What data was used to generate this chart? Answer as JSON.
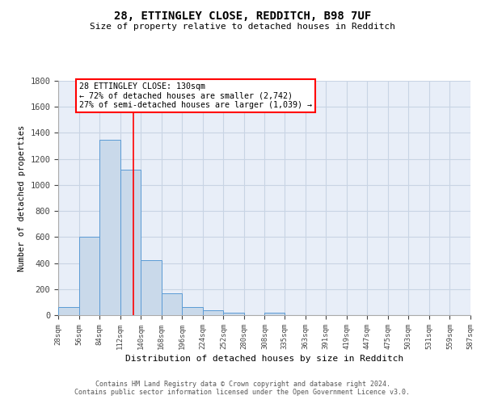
{
  "title_line1": "28, ETTINGLEY CLOSE, REDDITCH, B98 7UF",
  "title_line2": "Size of property relative to detached houses in Redditch",
  "xlabel": "Distribution of detached houses by size in Redditch",
  "ylabel": "Number of detached properties",
  "bar_values": [
    60,
    600,
    1350,
    1120,
    420,
    170,
    65,
    40,
    20,
    0,
    20,
    0,
    0,
    0,
    0,
    0,
    0,
    0,
    0,
    0
  ],
  "bin_edges": [
    28,
    56,
    84,
    112,
    140,
    168,
    196,
    224,
    252,
    280,
    308,
    335,
    363,
    391,
    419,
    447,
    475,
    503,
    531,
    559,
    587
  ],
  "tick_labels": [
    "28sqm",
    "56sqm",
    "84sqm",
    "112sqm",
    "140sqm",
    "168sqm",
    "196sqm",
    "224sqm",
    "252sqm",
    "280sqm",
    "308sqm",
    "335sqm",
    "363sqm",
    "391sqm",
    "419sqm",
    "447sqm",
    "475sqm",
    "503sqm",
    "531sqm",
    "559sqm",
    "587sqm"
  ],
  "ylim": [
    0,
    1800
  ],
  "yticks": [
    0,
    200,
    400,
    600,
    800,
    1000,
    1200,
    1400,
    1600,
    1800
  ],
  "bar_color": "#c9d9ea",
  "bar_edge_color": "#5b9bd5",
  "grid_color": "#c8d4e4",
  "bg_color": "#e8eef8",
  "red_line_x": 130,
  "annotation_text": "28 ETTINGLEY CLOSE: 130sqm\n← 72% of detached houses are smaller (2,742)\n27% of semi-detached houses are larger (1,039) →",
  "annotation_box_color": "white",
  "annotation_box_edge": "red",
  "footer_text_full": "Contains HM Land Registry data © Crown copyright and database right 2024.\nContains public sector information licensed under the Open Government Licence v3.0."
}
